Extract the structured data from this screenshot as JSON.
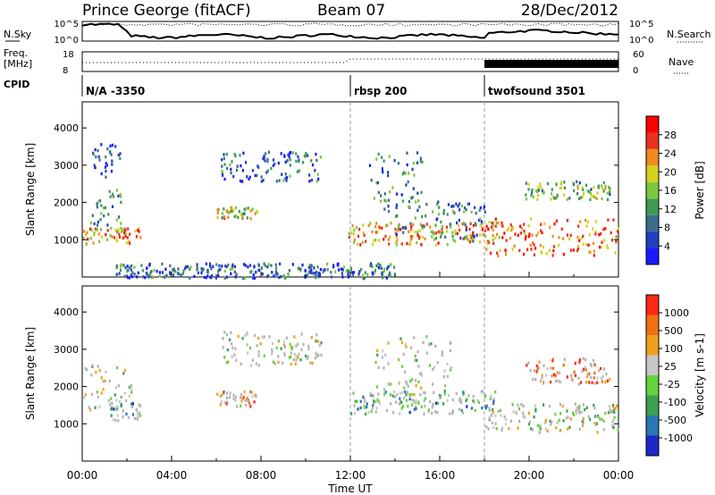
{
  "header": {
    "station": "Prince George (fitACF)",
    "beam": "Beam 07",
    "date": "28/Dec/2012"
  },
  "noise_panel": {
    "left_label": "N.Sky",
    "right_label": "N.Search",
    "left_ticks": [
      "10^5",
      "10^0"
    ],
    "right_ticks": [
      "10^5",
      "10^0"
    ]
  },
  "freq_panel": {
    "left_label_line1": "Freq.",
    "left_label_line2": "[MHz]",
    "left_ticks": [
      "18",
      "8"
    ],
    "right_label": "Nave",
    "right_ticks": [
      "60",
      "0"
    ]
  },
  "cpid": {
    "label": "CPID",
    "segments": [
      {
        "name": "N/A -3350",
        "start_hour": 0
      },
      {
        "name": "rbsp 200",
        "start_hour": 12
      },
      {
        "name": "twofsound 3501",
        "start_hour": 18
      }
    ]
  },
  "time_axis": {
    "label": "Time UT",
    "ticks": [
      "00:00",
      "04:00",
      "08:00",
      "12:00",
      "16:00",
      "20:00",
      "00:00"
    ],
    "range_hours": [
      0,
      24
    ]
  },
  "colors": {
    "power_scale": [
      "#1a1aff",
      "#2040c0",
      "#3c6e8c",
      "#3f9a54",
      "#7cc83c",
      "#d4d21e",
      "#f08a1e",
      "#e8321e",
      "#ff0000"
    ],
    "velocity_scale": [
      "#1e28c8",
      "#2878b4",
      "#3ca050",
      "#64d23c",
      "#c8c8c8",
      "#f0a01e",
      "#f06e14",
      "#ff2814"
    ],
    "ground_scatter": "#b4b4b4"
  },
  "chart_data": [
    {
      "type": "heatmap",
      "panel": "power",
      "ylabel": "Slant Range [km]",
      "y_ticks": [
        1000,
        2000,
        3000,
        4000
      ],
      "ylim": [
        0,
        4700
      ],
      "colorbar_label": "Power [dB]",
      "colorbar_ticks": [
        "28",
        "24",
        "20",
        "16",
        "12",
        "8",
        "4"
      ],
      "vlines_hours": [
        12,
        18
      ],
      "regions": [
        {
          "t": [
            0.0,
            2.6
          ],
          "r": [
            900,
            1350
          ],
          "level": 0.7
        },
        {
          "t": [
            0.3,
            1.9
          ],
          "r": [
            1300,
            2400
          ],
          "level": 0.35
        },
        {
          "t": [
            0.4,
            1.8
          ],
          "r": [
            2700,
            3600
          ],
          "level": 0.15
        },
        {
          "t": [
            6.0,
            7.8
          ],
          "r": [
            1600,
            1900
          ],
          "level": 0.55
        },
        {
          "t": [
            6.2,
            10.8
          ],
          "r": [
            2600,
            3400
          ],
          "level": 0.25
        },
        {
          "t": [
            11.9,
            18.5
          ],
          "r": [
            900,
            1500
          ],
          "level": 0.7
        },
        {
          "t": [
            12.8,
            15.2
          ],
          "r": [
            1800,
            3400
          ],
          "level": 0.3
        },
        {
          "t": [
            14.0,
            18.0
          ],
          "r": [
            1000,
            2100
          ],
          "level": 0.3
        },
        {
          "t": [
            18.0,
            24.0
          ],
          "r": [
            600,
            1600
          ],
          "level": 0.8
        },
        {
          "t": [
            19.8,
            23.6
          ],
          "r": [
            2100,
            2600
          ],
          "level": 0.45
        },
        {
          "t": [
            1.5,
            14.0
          ],
          "r": [
            0,
            400
          ],
          "level": 0.25
        }
      ]
    },
    {
      "type": "heatmap",
      "panel": "velocity",
      "ylabel": "Slant Range [km]",
      "y_ticks": [
        1000,
        2000,
        3000,
        4000
      ],
      "ylim": [
        0,
        4700
      ],
      "colorbar_label": "Velocity [m s-1]",
      "colorbar_ticks": [
        "1000",
        "500",
        "100",
        "25",
        "-25",
        "-100",
        "-500",
        "-1000"
      ],
      "vlines_hours": [
        12,
        18
      ],
      "regions": [
        {
          "t": [
            0.0,
            2.2
          ],
          "r": [
            1400,
            2600
          ],
          "level": 0.5
        },
        {
          "t": [
            1.2,
            2.6
          ],
          "r": [
            1100,
            1600
          ],
          "level": 0.35
        },
        {
          "t": [
            6.0,
            7.8
          ],
          "r": [
            1500,
            1900
          ],
          "level": 0.7
        },
        {
          "t": [
            6.2,
            10.8
          ],
          "r": [
            2600,
            3500
          ],
          "level": 0.5
        },
        {
          "t": [
            12.0,
            18.5
          ],
          "r": [
            1300,
            1900
          ],
          "level": 0.35
        },
        {
          "t": [
            13.0,
            16.5
          ],
          "r": [
            1600,
            3400
          ],
          "level": 0.5
        },
        {
          "t": [
            18.0,
            24.0
          ],
          "r": [
            800,
            1600
          ],
          "level": 0.5
        },
        {
          "t": [
            19.8,
            23.6
          ],
          "r": [
            2100,
            2800
          ],
          "level": 0.8
        }
      ]
    }
  ]
}
